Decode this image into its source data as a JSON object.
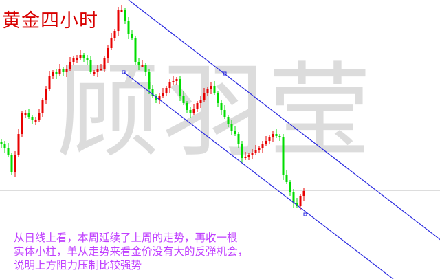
{
  "title": "黄金四小时",
  "watermark": "顾羽莹",
  "note_lines": [
    "从日线上看，本周延续了上周的走势，再收一根",
    "实体小柱，单从走势来看金价没有大的反弹机会，",
    "说明上方阻力压制比较强势"
  ],
  "chart_data": {
    "type": "candlestick",
    "axes": "none",
    "grid": false,
    "colors": {
      "up": "#e80000",
      "down": "#00dd00",
      "channel": "#2a2ae0",
      "level": "#bbbbbb",
      "title": "#d80000",
      "note": "#c040ff"
    },
    "closes": [
      196,
      191,
      181,
      156,
      181,
      211,
      241,
      241,
      236,
      231,
      231,
      241,
      261,
      276,
      296,
      301,
      298,
      306,
      301,
      306,
      316,
      321,
      321,
      326,
      321,
      318,
      301,
      301,
      306,
      306,
      321,
      336,
      351,
      361,
      391,
      391,
      376,
      356,
      351,
      316,
      311,
      311,
      301,
      276,
      266,
      261,
      266,
      271,
      278,
      286,
      288,
      291,
      266,
      256,
      246,
      241,
      248,
      256,
      261,
      271,
      276,
      281,
      271,
      256,
      246,
      236,
      226,
      216,
      211,
      196,
      176,
      178,
      181,
      184,
      188,
      191,
      196,
      201,
      206,
      211,
      208,
      206,
      151,
      141,
      126,
      111,
      106,
      121,
      128
    ],
    "channel_upper": [
      [
        37,
        406
      ],
      [
        128,
        56
      ]
    ],
    "channel_lower": [
      [
        35.6,
        301
      ],
      [
        114,
        0
      ]
    ],
    "horizontal_level": 129
  }
}
